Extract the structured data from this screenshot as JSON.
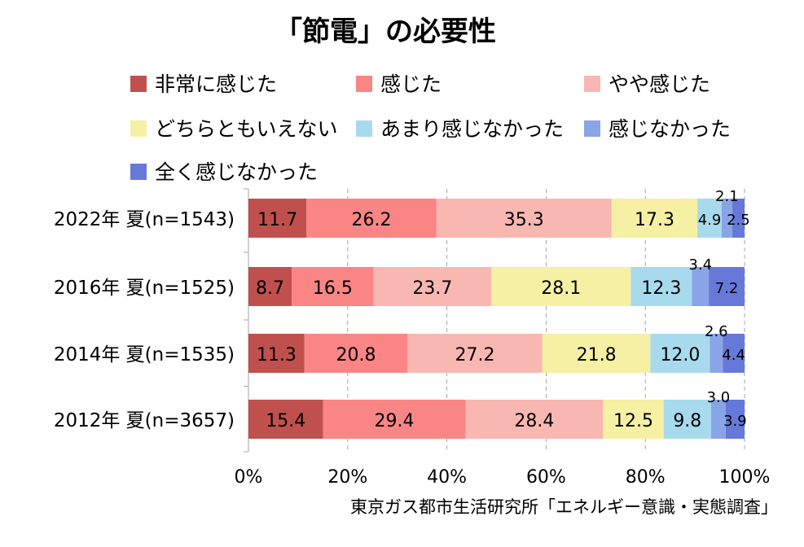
{
  "chart_data": {
    "type": "bar",
    "orientation": "horizontal",
    "stacked": true,
    "title": "「節電」の必要性",
    "source": "東京ガス都市生活研究所「エネルギー意識・実態調査」",
    "categories": [
      "2022年 夏(n=1543)",
      "2016年 夏(n=1525)",
      "2014年 夏(n=1535)",
      "2012年 夏(n=3657)"
    ],
    "series": [
      {
        "name": "非常に感じた",
        "color": "#c0504d",
        "values": [
          11.7,
          8.7,
          11.3,
          15.4
        ]
      },
      {
        "name": "感じた",
        "color": "#fa8585",
        "values": [
          26.2,
          16.5,
          20.8,
          29.4
        ]
      },
      {
        "name": "やや感じた",
        "color": "#f9b7b1",
        "values": [
          35.3,
          23.7,
          27.2,
          28.4
        ]
      },
      {
        "name": "どちらともいえない",
        "color": "#f5f0a4",
        "values": [
          17.3,
          28.1,
          21.8,
          12.5
        ]
      },
      {
        "name": "あまり感じなかった",
        "color": "#a8daee",
        "values": [
          4.9,
          12.3,
          12.0,
          9.8
        ]
      },
      {
        "name": "感じなかった",
        "color": "#8aa4e8",
        "values": [
          2.1,
          3.4,
          2.6,
          3.0
        ]
      },
      {
        "name": "全く感じなかった",
        "color": "#6679d8",
        "values": [
          2.5,
          7.2,
          4.4,
          3.9
        ]
      }
    ],
    "xlim": [
      0,
      100
    ],
    "x_ticks": [
      "0%",
      "20%",
      "40%",
      "60%",
      "80%",
      "100%"
    ],
    "grid": true,
    "legend_position": "top"
  }
}
